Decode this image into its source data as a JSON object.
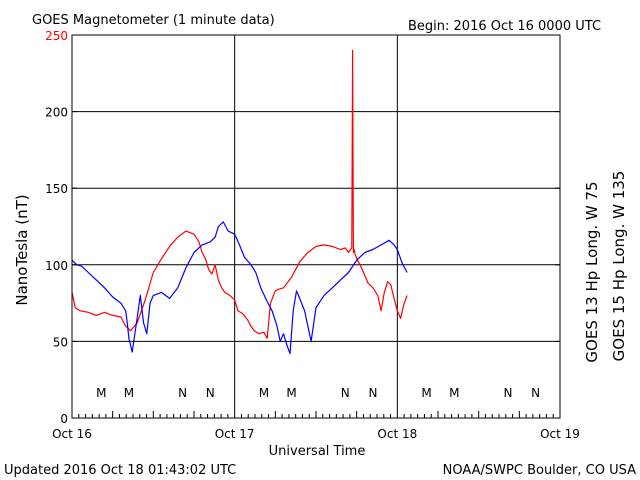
{
  "chart_data": {
    "type": "line",
    "title": "GOES Magnetometer (1 minute data)",
    "begin_label": "Begin:  2016 Oct 16 0000 UTC",
    "xlabel": "Universal Time",
    "ylabel": "NanoTesla (nT)",
    "ylim": [
      0,
      250
    ],
    "xlim": [
      0,
      3
    ],
    "grid": true,
    "x_tick_labels": [
      "Oct 16",
      "Oct 17",
      "Oct 18",
      "Oct 19"
    ],
    "y_tick_labels": [
      "0",
      "50",
      "100",
      "150",
      "200",
      "250"
    ],
    "y_tick_values": [
      0,
      50,
      100,
      150,
      200,
      250
    ],
    "y_top_label_color": "#ff0000",
    "series": [
      {
        "name": "GOES 13 Hp  Long. W 75",
        "color": "#ff0000",
        "x": [
          0.0,
          0.02,
          0.05,
          0.1,
          0.15,
          0.2,
          0.25,
          0.3,
          0.33,
          0.36,
          0.4,
          0.45,
          0.5,
          0.55,
          0.6,
          0.65,
          0.7,
          0.75,
          0.78,
          0.8,
          0.82,
          0.84,
          0.86,
          0.88,
          0.9,
          0.92,
          0.94,
          0.97,
          1.0,
          1.02,
          1.05,
          1.08,
          1.1,
          1.12,
          1.15,
          1.18,
          1.2,
          1.22,
          1.25,
          1.27,
          1.3,
          1.35,
          1.4,
          1.45,
          1.5,
          1.55,
          1.6,
          1.65,
          1.68,
          1.7,
          1.72,
          1.725,
          1.73,
          1.735,
          1.74,
          1.76,
          1.78,
          1.8,
          1.82,
          1.85,
          1.88,
          1.9,
          1.92,
          1.94,
          1.96,
          1.98,
          2.0,
          2.02,
          2.04,
          2.06
        ],
        "y": [
          82,
          72,
          70,
          69,
          67,
          69,
          67,
          66,
          60,
          57,
          62,
          77,
          95,
          104,
          112,
          118,
          122,
          120,
          115,
          108,
          104,
          97,
          94,
          100,
          90,
          85,
          82,
          80,
          77,
          70,
          68,
          64,
          60,
          57,
          55,
          56,
          52,
          75,
          83,
          84,
          85,
          92,
          102,
          108,
          112,
          113,
          112,
          110,
          111,
          108,
          111,
          240,
          108,
          110,
          107,
          102,
          98,
          93,
          88,
          85,
          80,
          70,
          82,
          89,
          87,
          78,
          70,
          65,
          74,
          80
        ]
      },
      {
        "name": "GOES 15 Hp  Long. W 135",
        "color": "#0000ff",
        "x": [
          0.0,
          0.03,
          0.06,
          0.1,
          0.15,
          0.2,
          0.25,
          0.3,
          0.33,
          0.34,
          0.35,
          0.37,
          0.4,
          0.42,
          0.44,
          0.46,
          0.48,
          0.5,
          0.55,
          0.6,
          0.65,
          0.7,
          0.75,
          0.8,
          0.85,
          0.88,
          0.9,
          0.93,
          0.96,
          1.0,
          1.03,
          1.06,
          1.1,
          1.13,
          1.16,
          1.2,
          1.23,
          1.26,
          1.28,
          1.3,
          1.32,
          1.34,
          1.36,
          1.38,
          1.4,
          1.43,
          1.47,
          1.5,
          1.55,
          1.6,
          1.65,
          1.7,
          1.75,
          1.8,
          1.85,
          1.9,
          1.95,
          1.98,
          2.0,
          2.03,
          2.06
        ],
        "y": [
          103,
          100,
          99,
          95,
          90,
          85,
          79,
          75,
          70,
          62,
          52,
          43,
          65,
          80,
          62,
          55,
          75,
          80,
          82,
          78,
          85,
          98,
          108,
          113,
          115,
          118,
          125,
          128,
          122,
          120,
          113,
          105,
          100,
          95,
          85,
          76,
          70,
          60,
          50,
          55,
          48,
          42,
          70,
          83,
          78,
          70,
          50,
          72,
          80,
          85,
          90,
          95,
          103,
          108,
          110,
          113,
          116,
          113,
          110,
          101,
          95
        ]
      }
    ],
    "markers": [
      {
        "label": "M",
        "x": 0.18,
        "color": "#ff0000"
      },
      {
        "label": "M",
        "x": 0.35,
        "color": "#0000ff"
      },
      {
        "label": "N",
        "x": 0.68,
        "color": "#ff0000"
      },
      {
        "label": "N",
        "x": 0.85,
        "color": "#0000ff"
      },
      {
        "label": "M",
        "x": 1.18,
        "color": "#ff0000"
      },
      {
        "label": "M",
        "x": 1.35,
        "color": "#0000ff"
      },
      {
        "label": "N",
        "x": 1.68,
        "color": "#ff0000"
      },
      {
        "label": "N",
        "x": 1.85,
        "color": "#0000ff"
      },
      {
        "label": "M",
        "x": 2.18,
        "color": "#ff0000"
      },
      {
        "label": "M",
        "x": 2.35,
        "color": "#0000ff"
      },
      {
        "label": "N",
        "x": 2.68,
        "color": "#ff0000"
      },
      {
        "label": "N",
        "x": 2.85,
        "color": "#0000ff"
      }
    ],
    "marker_level": 17,
    "footer_left": "Updated 2016 Oct 18 01:43:02 UTC",
    "footer_right": "NOAA/SWPC Boulder, CO USA"
  }
}
